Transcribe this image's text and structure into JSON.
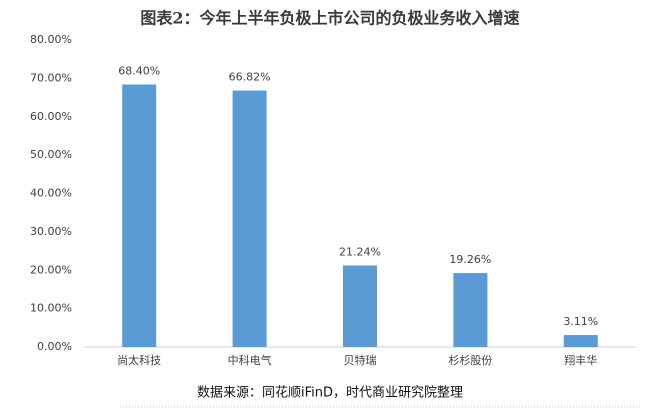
{
  "chart_data": {
    "type": "bar",
    "title": "图表2：今年上半年负极上市公司的负极业务收入增速",
    "categories": [
      "尚太科技",
      "中科电气",
      "贝特瑞",
      "杉杉股份",
      "翔丰华"
    ],
    "values": [
      68.4,
      66.82,
      21.24,
      19.26,
      3.11
    ],
    "value_labels": [
      "68.40%",
      "66.82%",
      "21.24%",
      "19.26%",
      "3.11%"
    ],
    "color": "#5b9bd5",
    "ylim": [
      0,
      80
    ],
    "yticks": [
      {
        "value": 0,
        "label": "0.00%"
      },
      {
        "value": 10,
        "label": "10.00%"
      },
      {
        "value": 20,
        "label": "20.00%"
      },
      {
        "value": 30,
        "label": "30.00%"
      },
      {
        "value": 40,
        "label": "40.00%"
      },
      {
        "value": 50,
        "label": "50.00%"
      },
      {
        "value": 60,
        "label": "60.00%"
      },
      {
        "value": 70,
        "label": "70.00%"
      },
      {
        "value": 80,
        "label": "80.00%"
      }
    ],
    "grid": false,
    "source": "数据来源：同花顺iFinD，时代商业研究院整理"
  }
}
